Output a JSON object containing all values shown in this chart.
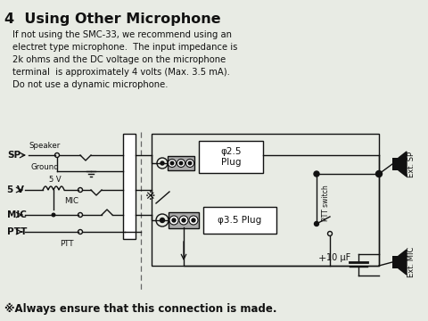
{
  "title": "4  Using Other Microphone",
  "paragraph": "If not using the SMC-33, we recommend using an\nelectret type microphone.  The input impedance is\n2k ohms and the DC voltage on the microphone\nterminal  is approximately 4 volts (Max. 3.5 mA).\nDo not use a dynamic microphone.",
  "footnote": "※Always ensure that this connection is made.",
  "bg_color": "#e8ebe4",
  "text_color": "#111111"
}
